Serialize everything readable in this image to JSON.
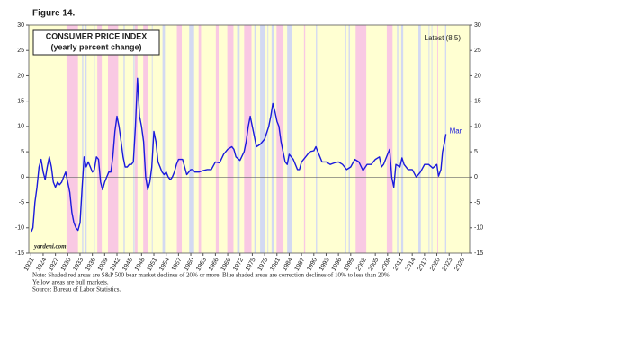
{
  "chart_data": {
    "type": "line",
    "figure_label": "Figure 14.",
    "title": "CONSUMER PRICE INDEX",
    "subtitle": "(yearly percent change)",
    "annotation": "Latest (8.5)",
    "end_label": "Mar",
    "source_site": "yardeni.com",
    "notes": [
      "Note: Shaded red areas are S&P 500 bear market declines of 20% or more.  Blue shaded areas are correction declines of 10% to less than 20%.",
      "Yellow areas are bull markets.",
      "Source: Bureau of Labor Statistics."
    ],
    "background_color": "#ffffd2",
    "bear_color": "#f9c9e3",
    "correction_color": "#d3d9f2",
    "bear_markets": [
      [
        1929.7,
        1932.5
      ],
      [
        1937.2,
        1938.3
      ],
      [
        1939.8,
        1942.3
      ],
      [
        1946.4,
        1947.0
      ],
      [
        1948.4,
        1949.5
      ],
      [
        1956.6,
        1957.8
      ],
      [
        1961.9,
        1962.5
      ],
      [
        1966.1,
        1966.8
      ],
      [
        1968.9,
        1970.4
      ],
      [
        1973.0,
        1974.8
      ],
      [
        1980.9,
        1982.6
      ],
      [
        1987.6,
        1987.9
      ],
      [
        2000.2,
        2002.8
      ],
      [
        2007.8,
        2009.2
      ],
      [
        2020.1,
        2020.3
      ]
    ],
    "corrections": [
      [
        1933.5,
        1933.8
      ],
      [
        1934.1,
        1934.6
      ],
      [
        1936.3,
        1936.6
      ],
      [
        1943.6,
        1943.9
      ],
      [
        1946.0,
        1946.3
      ],
      [
        1950.5,
        1950.7
      ],
      [
        1953.1,
        1953.7
      ],
      [
        1959.6,
        1960.8
      ],
      [
        1971.3,
        1971.9
      ],
      [
        1975.5,
        1975.8
      ],
      [
        1976.9,
        1978.2
      ],
      [
        1978.7,
        1978.9
      ],
      [
        1979.7,
        1980.2
      ],
      [
        1983.5,
        1984.6
      ],
      [
        1990.5,
        1990.8
      ],
      [
        1997.6,
        1997.9
      ],
      [
        1998.5,
        1998.8
      ],
      [
        2010.3,
        2010.6
      ],
      [
        2011.3,
        2011.8
      ],
      [
        2015.5,
        2016.1
      ],
      [
        2018.0,
        2018.2
      ],
      [
        2018.7,
        2018.9
      ],
      [
        2022.0,
        2022.3
      ]
    ],
    "x": [
      1921,
      1921.5,
      1922,
      1922.5,
      1923,
      1923.5,
      1924,
      1924.5,
      1925,
      1925.5,
      1926,
      1926.5,
      1927,
      1927.5,
      1928,
      1928.5,
      1929,
      1929.5,
      1930,
      1930.5,
      1931,
      1931.5,
      1932,
      1932.5,
      1933,
      1933.5,
      1934,
      1934.5,
      1935,
      1935.5,
      1936,
      1936.5,
      1937,
      1937.5,
      1938,
      1938.5,
      1939,
      1939.5,
      1940,
      1940.5,
      1941,
      1941.5,
      1942,
      1942.5,
      1943,
      1943.5,
      1944,
      1944.5,
      1945,
      1945.5,
      1946,
      1946.5,
      1947,
      1947.5,
      1948,
      1948.5,
      1949,
      1949.5,
      1950,
      1950.5,
      1951,
      1951.5,
      1952,
      1952.5,
      1953,
      1953.5,
      1954,
      1954.5,
      1955,
      1955.5,
      1956,
      1956.5,
      1957,
      1957.5,
      1958,
      1958.5,
      1959,
      1959.5,
      1960,
      1960.5,
      1961,
      1962,
      1963,
      1964,
      1965,
      1966,
      1967,
      1968,
      1969,
      1970,
      1970.5,
      1971,
      1972,
      1973,
      1973.5,
      1974,
      1974.5,
      1975,
      1975.5,
      1976,
      1977,
      1978,
      1979,
      1979.5,
      1980,
      1980.5,
      1981,
      1981.5,
      1982,
      1982.5,
      1983,
      1983.5,
      1984,
      1985,
      1986,
      1986.5,
      1987,
      1988,
      1989,
      1990,
      1990.5,
      1991,
      1992,
      1993,
      1994,
      1995,
      1996,
      1997,
      1998,
      1999,
      2000,
      2001,
      2002,
      2003,
      2004,
      2005,
      2006,
      2006.5,
      2007,
      2008,
      2008.5,
      2009,
      2009.5,
      2010,
      2011,
      2011.5,
      2012,
      2013,
      2014,
      2015,
      2016,
      2017,
      2018,
      2019,
      2020,
      2020.4,
      2021,
      2021.4,
      2021.9,
      2022.2
    ],
    "series": [
      {
        "name": "CPI",
        "color": "#1a1adc",
        "values": [
          -11,
          -10,
          -5,
          -2,
          2,
          3.5,
          1,
          -0.5,
          2,
          4,
          2,
          -1,
          -2,
          -1,
          -1.5,
          -1,
          0,
          1,
          -1,
          -3,
          -7,
          -9,
          -10,
          -10.5,
          -9,
          -2,
          4,
          2,
          3,
          2,
          1,
          1.5,
          4,
          3.5,
          -1,
          -2.5,
          -1,
          0,
          1,
          1,
          4,
          9,
          12,
          10,
          7,
          4,
          2,
          2,
          2.5,
          2.5,
          3,
          10,
          19.5,
          12,
          10,
          7,
          0,
          -2.5,
          -1,
          2,
          9,
          7,
          3,
          2,
          1,
          0.5,
          1,
          0,
          -0.5,
          0,
          1,
          2.5,
          3.5,
          3.5,
          3.5,
          2,
          0.5,
          1,
          1.5,
          1.5,
          1,
          1,
          1.3,
          1.5,
          1.5,
          3,
          2.8,
          4.5,
          5.5,
          6,
          5.5,
          4,
          3.3,
          5,
          7,
          10,
          12,
          10,
          8,
          6,
          6.5,
          7.5,
          10,
          12,
          14.5,
          13,
          11,
          10,
          7,
          5,
          3,
          2.5,
          4.5,
          3.5,
          1.5,
          1.5,
          3,
          4,
          5,
          5.2,
          6,
          5,
          3,
          3,
          2.5,
          2.8,
          3,
          2.5,
          1.5,
          2,
          3.5,
          3,
          1.3,
          2.5,
          2.5,
          3.5,
          4,
          2,
          2.5,
          4.5,
          5.5,
          0,
          -2,
          2.5,
          2,
          3.8,
          2.5,
          1.5,
          1.5,
          0,
          1,
          2.5,
          2.5,
          1.8,
          2.5,
          0.2,
          1.5,
          5,
          7,
          8.5
        ]
      }
    ],
    "xlim": [
      1920.5,
      2028
    ],
    "xticks": [
      1921,
      1924,
      1927,
      1930,
      1933,
      1936,
      1939,
      1942,
      1945,
      1948,
      1951,
      1954,
      1957,
      1960,
      1963,
      1966,
      1969,
      1972,
      1975,
      1978,
      1981,
      1984,
      1987,
      1990,
      1993,
      1996,
      1999,
      2002,
      2005,
      2008,
      2011,
      2014,
      2017,
      2020,
      2023,
      2026
    ],
    "ylim": [
      -15,
      30
    ],
    "yticks": [
      -15,
      -10,
      -5,
      0,
      5,
      10,
      15,
      20,
      25,
      30
    ],
    "zero_line": true
  }
}
